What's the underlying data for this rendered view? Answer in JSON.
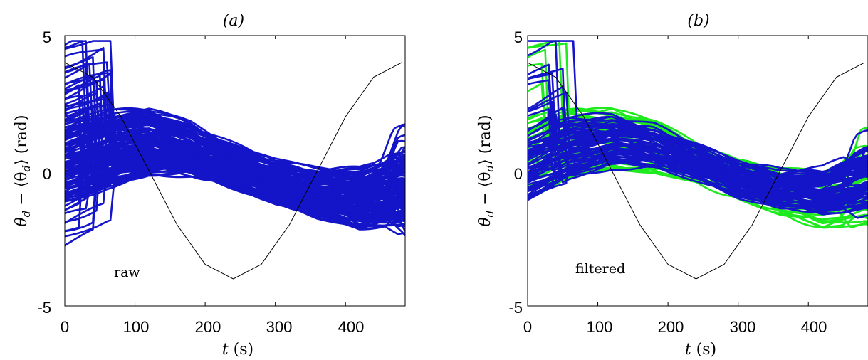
{
  "chart_data": [
    {
      "type": "line",
      "panel": "(a)",
      "title": "(a)",
      "xlabel_math": "t",
      "xlabel_unit": " (s)",
      "ylabel": "θ_d − ⟨θ_d⟩ (rad)",
      "ylabel_main": "θ",
      "ylabel_sub": "d",
      "ylabel_mid": " − ⟨θ",
      "ylabel_sub2": "d",
      "ylabel_end": "⟩ (rad)",
      "xlim": [
        0,
        485
      ],
      "ylim": [
        -5,
        5
      ],
      "xticks": [
        "0",
        "100",
        "200",
        "300",
        "400"
      ],
      "yticks": [
        "5",
        "0",
        "-5"
      ],
      "annotation": "raw",
      "grid": false,
      "reference_curve": {
        "name": "sinusoid",
        "color": "#000000",
        "x": [
          0,
          40,
          80,
          120,
          160,
          200,
          240,
          280,
          320,
          360,
          400,
          440,
          480
        ],
        "y": [
          4.0,
          3.46,
          2.0,
          0.0,
          -2.0,
          -3.46,
          -4.0,
          -3.46,
          -2.0,
          0.0,
          2.0,
          3.46,
          4.0
        ]
      },
      "series_groups": [
        {
          "color": "#1414c8",
          "count": 140,
          "amplitude": 1.25,
          "phase_at_x": 140,
          "spread": 2.2,
          "x": [
            0,
            60,
            120,
            180,
            240,
            300,
            360,
            420,
            480
          ],
          "y_center": [
            0.2,
            0.8,
            1.1,
            0.8,
            0.2,
            -0.4,
            -0.8,
            -1.0,
            -0.6
          ]
        }
      ],
      "colors": {
        "raw": "#1414c8",
        "reference": "#000000"
      }
    },
    {
      "type": "line",
      "panel": "(b)",
      "title": "(b)",
      "xlabel_math": "t",
      "xlabel_unit": " (s)",
      "ylabel": "θ_d − ⟨θ_d⟩ (rad)",
      "ylabel_main": "θ",
      "ylabel_sub": "d",
      "ylabel_mid": " − ⟨θ",
      "ylabel_sub2": "d",
      "ylabel_end": "⟩ (rad)",
      "xlim": [
        0,
        485
      ],
      "ylim": [
        -5,
        5
      ],
      "xticks": [
        "0",
        "100",
        "200",
        "300",
        "400"
      ],
      "yticks": [
        "5",
        "0",
        "-5"
      ],
      "annotation": "filtered",
      "grid": false,
      "reference_curve": {
        "name": "sinusoid",
        "color": "#000000",
        "x": [
          0,
          40,
          80,
          120,
          160,
          200,
          240,
          280,
          320,
          360,
          400,
          440,
          480
        ],
        "y": [
          4.0,
          3.46,
          2.0,
          0.0,
          -2.0,
          -3.46,
          -4.0,
          -3.46,
          -2.0,
          0.0,
          2.0,
          3.46,
          4.0
        ]
      },
      "series_groups": [
        {
          "color": "#1eea1e",
          "count": 45,
          "amplitude": 1.6,
          "spread": 2.6,
          "x": [
            0,
            60,
            120,
            180,
            240,
            300,
            360,
            420,
            480
          ],
          "y_center": [
            0.3,
            0.8,
            1.1,
            0.8,
            0.2,
            -0.4,
            -0.9,
            -1.2,
            -0.8
          ]
        },
        {
          "color": "#1414c8",
          "count": 70,
          "amplitude": 1.1,
          "spread": 1.8,
          "x": [
            0,
            60,
            120,
            180,
            240,
            300,
            360,
            420,
            480
          ],
          "y_center": [
            0.1,
            0.8,
            1.1,
            0.9,
            0.3,
            -0.3,
            -0.7,
            -0.8,
            -0.3
          ]
        }
      ],
      "colors": {
        "raw": "#1eea1e",
        "filtered": "#1414c8",
        "reference": "#000000"
      }
    }
  ]
}
